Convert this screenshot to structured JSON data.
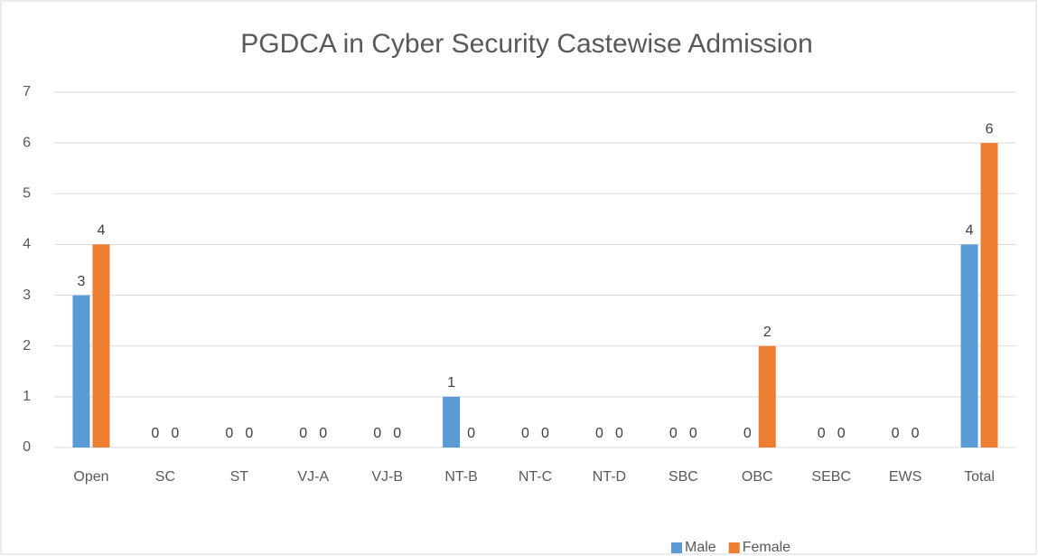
{
  "chart_data": {
    "type": "bar",
    "title": "PGDCA in Cyber Security Castewise Admission",
    "categories": [
      "Open",
      "SC",
      "ST",
      "VJ-A",
      "VJ-B",
      "NT-B",
      "NT-C",
      "NT-D",
      "SBC",
      "OBC",
      "SEBC",
      "EWS",
      "Total"
    ],
    "series": [
      {
        "name": "Male",
        "color": "#5b9bd5",
        "values": [
          3,
          0,
          0,
          0,
          0,
          1,
          0,
          0,
          0,
          0,
          0,
          0,
          4
        ]
      },
      {
        "name": "Female",
        "color": "#ed7d31",
        "values": [
          4,
          0,
          0,
          0,
          0,
          0,
          0,
          0,
          0,
          2,
          0,
          0,
          6
        ]
      }
    ],
    "ylim": [
      0,
      7
    ],
    "yticks": [
      0,
      1,
      2,
      3,
      4,
      5,
      6,
      7
    ],
    "grid": true,
    "legend": "bottom"
  }
}
